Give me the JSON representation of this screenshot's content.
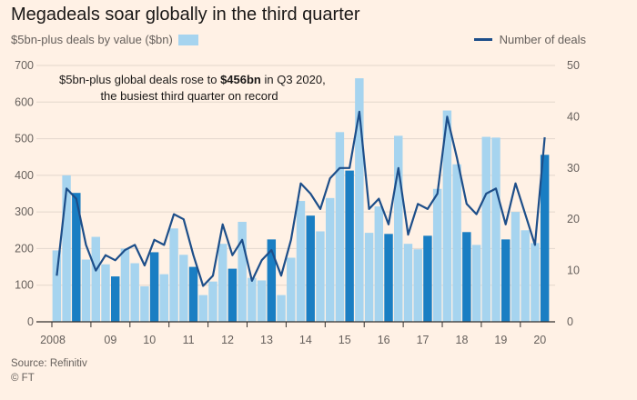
{
  "header": {
    "title": "Megadeals soar globally in the third quarter"
  },
  "legend": {
    "bars_label": "$5bn-plus deals by value ($bn)",
    "line_label": "Number of deals"
  },
  "annotation": {
    "line1_pre": "$5bn-plus global deals rose to ",
    "line1_bold": "$456bn",
    "line1_post": " in Q3 2020,",
    "line2": "the busiest third quarter on record"
  },
  "footer": {
    "source": "Source: Refinitiv",
    "credit": "© FT"
  },
  "colors": {
    "background": "#fff1e5",
    "bar_light": "#a6d4ef",
    "bar_highlight": "#1a7ec3",
    "line": "#1d4e89",
    "grid": "#e3d7cc"
  },
  "chart_data": {
    "type": "bar",
    "categories": [
      "2008 Q1",
      "2008 Q2",
      "2008 Q3",
      "2008 Q4",
      "2009 Q1",
      "2009 Q2",
      "2009 Q3",
      "2009 Q4",
      "2010 Q1",
      "2010 Q2",
      "2010 Q3",
      "2010 Q4",
      "2011 Q1",
      "2011 Q2",
      "2011 Q3",
      "2011 Q4",
      "2012 Q1",
      "2012 Q2",
      "2012 Q3",
      "2012 Q4",
      "2013 Q1",
      "2013 Q2",
      "2013 Q3",
      "2013 Q4",
      "2014 Q1",
      "2014 Q2",
      "2014 Q3",
      "2014 Q4",
      "2015 Q1",
      "2015 Q2",
      "2015 Q3",
      "2015 Q4",
      "2016 Q1",
      "2016 Q2",
      "2016 Q3",
      "2016 Q4",
      "2017 Q1",
      "2017 Q2",
      "2017 Q3",
      "2017 Q4",
      "2018 Q1",
      "2018 Q2",
      "2018 Q3",
      "2018 Q4",
      "2019 Q1",
      "2019 Q2",
      "2019 Q3",
      "2019 Q4",
      "2020 Q1",
      "2020 Q2",
      "2020 Q3"
    ],
    "highlight_quarter": "Q3",
    "series": [
      {
        "name": "$5bn-plus deals by value ($bn)",
        "axis": "left",
        "values": [
          195,
          400,
          352,
          170,
          232,
          157,
          124,
          200,
          160,
          97,
          190,
          130,
          255,
          183,
          150,
          73,
          110,
          213,
          145,
          273,
          120,
          113,
          225,
          73,
          175,
          330,
          290,
          247,
          338,
          518,
          413,
          665,
          243,
          315,
          240,
          508,
          213,
          198,
          235,
          363,
          577,
          430,
          245,
          210,
          505,
          503,
          225,
          300,
          250,
          215,
          456
        ]
      },
      {
        "name": "Number of deals",
        "axis": "right",
        "values": [
          9,
          26,
          24,
          15,
          10,
          13,
          12,
          14,
          15,
          11,
          16,
          15,
          21,
          20,
          13,
          7,
          9,
          19,
          13,
          16,
          8,
          12,
          14,
          9,
          16,
          27,
          25,
          22,
          28,
          30,
          30,
          41,
          22,
          24,
          19,
          30,
          17,
          23,
          22,
          25,
          40,
          32,
          23,
          21,
          25,
          26,
          19,
          27,
          21,
          15,
          36
        ]
      }
    ],
    "x_tick_labels": [
      "2008",
      "09",
      "10",
      "11",
      "12",
      "13",
      "14",
      "15",
      "16",
      "17",
      "18",
      "19",
      "20"
    ],
    "y_left": {
      "min": 0,
      "max": 700,
      "ticks": [
        0,
        100,
        200,
        300,
        400,
        500,
        600,
        700
      ]
    },
    "y_right": {
      "min": 0,
      "max": 50,
      "ticks": [
        0,
        10,
        20,
        30,
        40,
        50
      ]
    },
    "grid": true,
    "legend_position": "top"
  }
}
